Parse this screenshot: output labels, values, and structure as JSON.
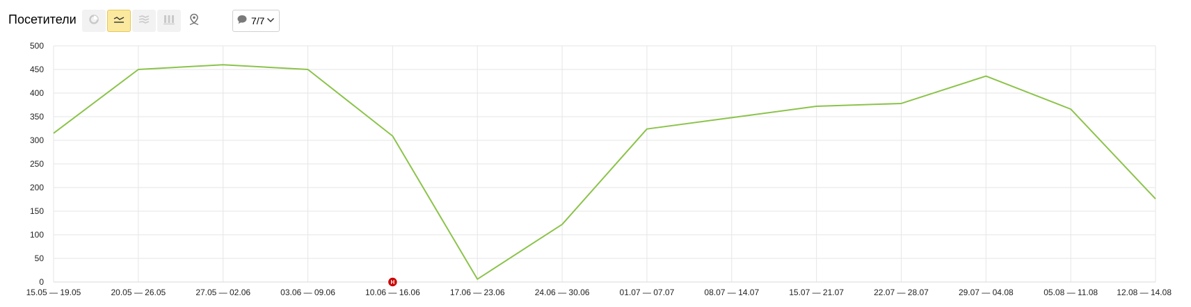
{
  "toolbar": {
    "title": "Посетители",
    "buttons": [
      {
        "icon": "pie-chart-icon",
        "state": "inactive"
      },
      {
        "icon": "line-chart-icon",
        "state": "active"
      },
      {
        "icon": "area-chart-icon",
        "state": "inactive"
      },
      {
        "icon": "bar-chart-icon",
        "state": "inactive"
      },
      {
        "icon": "map-pin-icon",
        "state": "inactive"
      }
    ],
    "comments": {
      "icon": "speech-bubble-icon",
      "count": "7/7"
    }
  },
  "colors": {
    "line": "#8bc34a",
    "grid": "#e6e6e6",
    "active_button": "#fbe9a0",
    "badge": "#cc0000"
  },
  "chart_data": {
    "type": "line",
    "title": "Посетители",
    "xlabel": "",
    "ylabel": "",
    "ylim": [
      0,
      500
    ],
    "yticks": [
      0,
      50,
      100,
      150,
      200,
      250,
      300,
      350,
      400,
      450,
      500
    ],
    "grid": true,
    "categories": [
      "15.05 — 19.05",
      "20.05 — 26.05",
      "27.05 — 02.06",
      "03.06 — 09.06",
      "10.06 — 16.06",
      "17.06 — 23.06",
      "24.06 — 30.06",
      "01.07 — 07.07",
      "08.07 — 14.07",
      "15.07 — 21.07",
      "22.07 — 28.07",
      "29.07 — 04.08",
      "05.08 — 11.08",
      "12.08 — 14.08"
    ],
    "series": [
      {
        "color": "#8bc34a",
        "values": [
          315,
          450,
          460,
          450,
          309,
          6,
          122,
          324,
          348,
          372,
          378,
          436,
          366,
          176
        ]
      }
    ],
    "annotations": [
      {
        "category": "10.06 — 16.06",
        "label": "Н"
      }
    ]
  }
}
